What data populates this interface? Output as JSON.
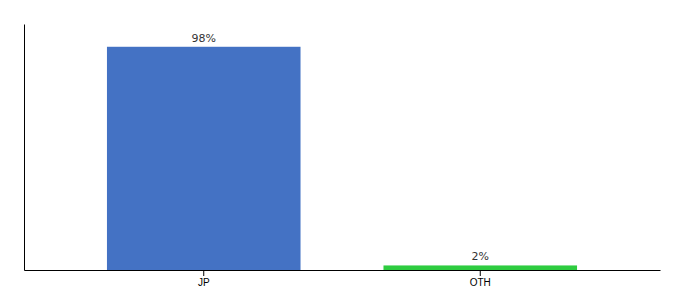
{
  "chart_data": {
    "type": "bar",
    "categories": [
      "JP",
      "OTH"
    ],
    "values": [
      98,
      2
    ],
    "colors": [
      "#4472C4",
      "#2ECC40"
    ],
    "value_labels": [
      "98%",
      "2%"
    ],
    "data_labels": true,
    "ylim": [
      0,
      108
    ],
    "grid": false,
    "tick_labels": "x"
  }
}
